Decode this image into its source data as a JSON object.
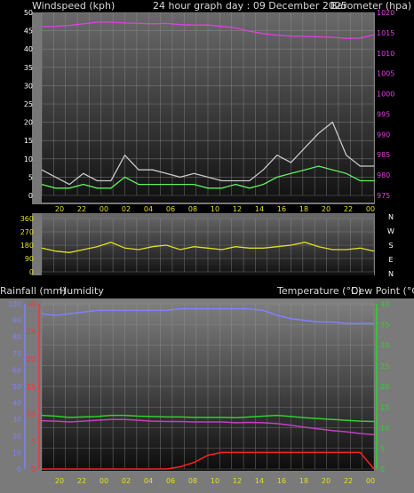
{
  "header": {
    "windspeed_label": "Windspeed (kph)",
    "graph_title": "24 hour graph day : 09 December 2025",
    "barometer_label": "Barometer (hpa)",
    "rainfall_label": "Rainfall (mm)",
    "humidity_label": "Humidity",
    "temperature_label": "Temperature (°C)",
    "dewpoint_label": "Dew Point (°C)"
  },
  "colors": {
    "wind_gust": "#c8c8c8",
    "wind_avg": "#5ff05f",
    "barometer": "#e040e0",
    "wind_direction": "#e0e020",
    "humidity": "#8080ff",
    "temperature": "#30d030",
    "dew_point": "#c040c0",
    "rainfall": "#ff2020",
    "rain_axis": "#ff3030",
    "humidity_axis": "#8080ff",
    "temp_axis": "#30d030",
    "time_axis": "#e0e020"
  },
  "chart_data": [
    {
      "type": "line",
      "name": "wind-barometer",
      "x_tick_labels": [
        "20",
        "22",
        "00",
        "02",
        "04",
        "06",
        "08",
        "10",
        "12",
        "14",
        "16",
        "18",
        "20",
        "22",
        "00"
      ],
      "left_axis": {
        "label": "Windspeed (kph)",
        "ylim": [
          0,
          50
        ],
        "ticks": [
          0,
          5,
          10,
          15,
          20,
          25,
          30,
          35,
          40,
          45,
          50
        ]
      },
      "right_axis": {
        "label": "Barometer (hpa)",
        "ylim": [
          975,
          1020
        ],
        "ticks": [
          975,
          980,
          985,
          990,
          995,
          1000,
          1005,
          1010,
          1015,
          1020
        ]
      },
      "series": [
        {
          "key": "wind_gust",
          "axis": "left",
          "x": [
            0,
            1,
            2,
            3,
            4,
            5,
            6,
            7,
            8,
            9,
            10,
            11,
            12,
            13,
            14,
            15,
            16,
            17,
            18,
            19,
            20,
            21,
            22,
            23,
            24
          ],
          "values": [
            7,
            5,
            3,
            6,
            4,
            4,
            11,
            7,
            7,
            6,
            5,
            6,
            5,
            4,
            4,
            4,
            7,
            11,
            9,
            13,
            17,
            20,
            11,
            8,
            8
          ]
        },
        {
          "key": "wind_avg",
          "axis": "left",
          "x": [
            0,
            1,
            2,
            3,
            4,
            5,
            6,
            7,
            8,
            9,
            10,
            11,
            12,
            13,
            14,
            15,
            16,
            17,
            18,
            19,
            20,
            21,
            22,
            23,
            24
          ],
          "values": [
            3,
            2,
            2,
            3,
            2,
            2,
            5,
            3,
            3,
            3,
            3,
            3,
            2,
            2,
            3,
            2,
            3,
            5,
            6,
            7,
            8,
            7,
            6,
            4,
            4
          ]
        },
        {
          "key": "barometer",
          "axis": "right",
          "x": [
            0,
            1,
            2,
            3,
            4,
            5,
            6,
            7,
            8,
            9,
            10,
            11,
            12,
            13,
            14,
            15,
            16,
            17,
            18,
            19,
            20,
            21,
            22,
            23,
            24
          ],
          "values": [
            1016.5,
            1016.6,
            1016.8,
            1017.2,
            1017.6,
            1017.6,
            1017.4,
            1017.3,
            1017.2,
            1017.3,
            1017.0,
            1016.9,
            1016.9,
            1016.6,
            1016.2,
            1015.4,
            1014.8,
            1014.4,
            1014.2,
            1014.1,
            1014.0,
            1013.9,
            1013.6,
            1013.7,
            1014.5
          ]
        }
      ]
    },
    {
      "type": "line",
      "name": "wind-direction",
      "ylim": [
        0,
        360
      ],
      "ticks": [
        0,
        90,
        180,
        270,
        360
      ],
      "compass_labels": [
        "N",
        "W",
        "S",
        "E",
        "N"
      ],
      "series": [
        {
          "key": "wind_direction",
          "x": [
            0,
            1,
            2,
            3,
            4,
            5,
            6,
            7,
            8,
            9,
            10,
            11,
            12,
            13,
            14,
            15,
            16,
            17,
            18,
            19,
            20,
            21,
            22,
            23,
            24
          ],
          "values": [
            160,
            140,
            130,
            150,
            170,
            200,
            160,
            150,
            170,
            180,
            150,
            170,
            160,
            150,
            170,
            160,
            160,
            170,
            180,
            200,
            170,
            150,
            150,
            160,
            140
          ]
        }
      ]
    },
    {
      "type": "line",
      "name": "rain-humidity-temperature",
      "x_tick_labels": [
        "20",
        "22",
        "00",
        "02",
        "04",
        "06",
        "08",
        "10",
        "12",
        "14",
        "16",
        "18",
        "20",
        "22",
        "00"
      ],
      "humidity_axis": {
        "label": "Humidity",
        "ylim": [
          0,
          100
        ],
        "ticks": [
          0,
          10,
          20,
          30,
          40,
          50,
          60,
          70,
          80,
          90,
          100
        ]
      },
      "rain_axis": {
        "label": "Rainfall (mm)",
        "ylim": [
          0,
          30
        ],
        "ticks": [
          0,
          5,
          10,
          15,
          20,
          25,
          30
        ]
      },
      "temp_axis": {
        "label": "Temperature (°C)",
        "ylim": [
          0,
          40
        ],
        "ticks": [
          0,
          5,
          10,
          15,
          20,
          25,
          30,
          35,
          40
        ]
      },
      "series": [
        {
          "key": "humidity",
          "axis": "humidity",
          "x": [
            0,
            1,
            2,
            3,
            4,
            5,
            6,
            7,
            8,
            9,
            10,
            11,
            12,
            13,
            14,
            15,
            16,
            17,
            18,
            19,
            20,
            21,
            22,
            23,
            24
          ],
          "values": [
            94,
            93,
            94,
            95,
            96,
            96,
            96,
            96,
            96,
            96,
            97,
            97,
            97,
            97,
            97,
            97,
            96,
            93,
            91,
            90,
            89,
            89,
            88,
            88,
            88
          ]
        },
        {
          "key": "temperature",
          "axis": "temp",
          "x": [
            0,
            1,
            2,
            3,
            4,
            5,
            6,
            7,
            8,
            9,
            10,
            11,
            12,
            13,
            14,
            15,
            16,
            17,
            18,
            19,
            20,
            21,
            22,
            23,
            24
          ],
          "values": [
            13,
            12.8,
            12.5,
            12.6,
            12.7,
            13,
            13,
            12.8,
            12.7,
            12.6,
            12.6,
            12.5,
            12.5,
            12.5,
            12.4,
            12.6,
            12.8,
            13,
            12.7,
            12.4,
            12.2,
            12.0,
            11.8,
            11.6,
            11.5
          ]
        },
        {
          "key": "dew_point",
          "axis": "temp",
          "x": [
            0,
            1,
            2,
            3,
            4,
            5,
            6,
            7,
            8,
            9,
            10,
            11,
            12,
            13,
            14,
            15,
            16,
            17,
            18,
            19,
            20,
            21,
            22,
            23,
            24
          ],
          "values": [
            11.7,
            11.6,
            11.4,
            11.6,
            11.8,
            12,
            12,
            11.8,
            11.6,
            11.5,
            11.5,
            11.4,
            11.4,
            11.4,
            11.2,
            11.3,
            11.2,
            11.0,
            10.6,
            10.1,
            9.7,
            9.3,
            9.0,
            8.6,
            8.3
          ]
        },
        {
          "key": "rainfall",
          "axis": "rain",
          "x": [
            0,
            1,
            2,
            3,
            4,
            5,
            6,
            7,
            8,
            9,
            10,
            11,
            12,
            13,
            14,
            15,
            16,
            17,
            18,
            19,
            20,
            21,
            22,
            23,
            24
          ],
          "values": [
            0,
            0,
            0,
            0,
            0,
            0,
            0,
            0,
            0,
            0,
            0.4,
            1.2,
            2.5,
            3,
            3,
            3,
            3,
            3,
            3,
            3,
            3,
            3,
            3,
            3,
            0
          ]
        }
      ]
    }
  ]
}
